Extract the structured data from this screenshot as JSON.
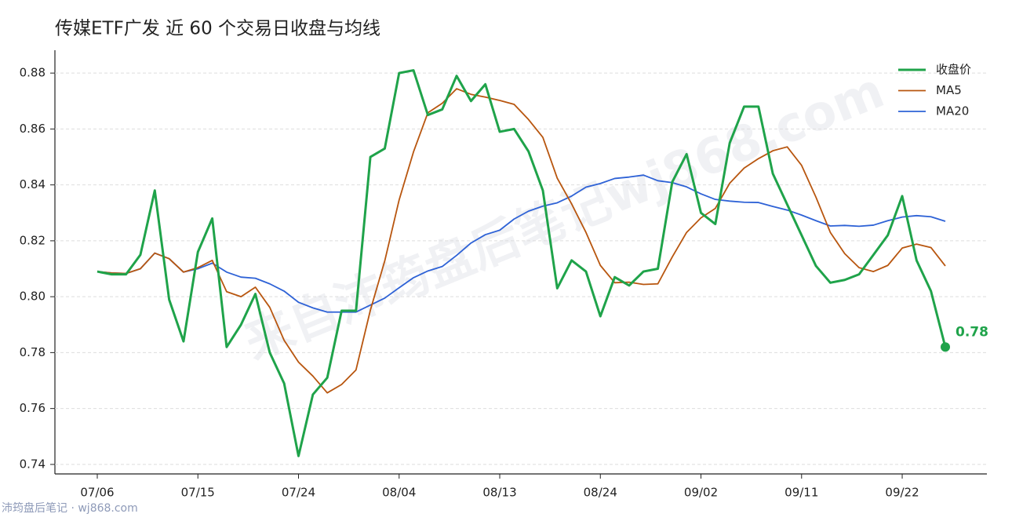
{
  "chart_data": {
    "type": "line",
    "title": "传媒ETF广发 近 60 个交易日收盘与均线",
    "watermark": "来自沛筠盘后笔记wj868.com",
    "source": "沛筠盘后笔记 · wj868.com",
    "categories": [
      "07/06",
      null,
      null,
      null,
      null,
      null,
      null,
      "07/15",
      null,
      null,
      null,
      null,
      null,
      null,
      "07/24",
      null,
      null,
      null,
      null,
      null,
      null,
      "08/04",
      null,
      null,
      null,
      null,
      null,
      null,
      "08/13",
      null,
      null,
      null,
      null,
      null,
      null,
      "08/24",
      null,
      null,
      null,
      null,
      null,
      null,
      "09/02",
      null,
      null,
      null,
      null,
      null,
      null,
      "09/11",
      null,
      null,
      null,
      null,
      null,
      null,
      "09/22",
      null,
      null,
      null
    ],
    "series": [
      {
        "name": "收盘价",
        "color": "#1fa34a",
        "width": 3,
        "values": [
          0.809,
          0.808,
          0.808,
          0.815,
          0.838,
          0.799,
          0.784,
          0.816,
          0.828,
          0.782,
          0.79,
          0.801,
          0.78,
          0.769,
          0.743,
          0.765,
          0.771,
          0.795,
          0.795,
          0.85,
          0.853,
          0.88,
          0.881,
          0.865,
          0.867,
          0.879,
          0.87,
          0.876,
          0.859,
          0.86,
          0.852,
          0.838,
          0.803,
          0.813,
          0.809,
          0.793,
          0.807,
          0.804,
          0.809,
          0.81,
          0.841,
          0.851,
          0.83,
          0.826,
          0.855,
          0.868,
          0.868,
          0.844,
          0.833,
          0.822,
          0.811,
          0.805,
          0.806,
          0.808,
          0.815,
          0.822,
          0.836,
          0.813,
          0.802,
          0.782
        ],
        "value_labels": [
          null,
          null,
          null,
          null,
          null,
          null,
          null,
          null,
          null,
          null,
          null,
          null,
          null,
          null,
          null,
          null,
          null,
          null,
          null,
          null,
          null,
          null,
          null,
          null,
          null,
          null,
          null,
          null,
          null,
          null,
          null,
          null,
          null,
          null,
          null,
          null,
          null,
          null,
          null,
          null,
          null,
          null,
          null,
          null,
          null,
          null,
          null,
          null,
          null,
          null,
          null,
          null,
          null,
          null,
          null,
          null,
          null,
          null,
          null,
          "0.78"
        ]
      },
      {
        "name": "MA5",
        "color": "#b8560f",
        "width": 1.8,
        "values": [
          0.809,
          0.8085,
          0.8083,
          0.81,
          0.8156,
          0.8136,
          0.8088,
          0.8104,
          0.813,
          0.8018,
          0.8,
          0.8034,
          0.7962,
          0.7844,
          0.7766,
          0.7716,
          0.7656,
          0.7686,
          0.7738,
          0.7952,
          0.8128,
          0.8346,
          0.8518,
          0.8658,
          0.8692,
          0.8744,
          0.8724,
          0.8714,
          0.8702,
          0.8688,
          0.8634,
          0.857,
          0.8424,
          0.8332,
          0.823,
          0.8112,
          0.805,
          0.8052,
          0.8044,
          0.8046,
          0.8142,
          0.823,
          0.8282,
          0.8316,
          0.8406,
          0.846,
          0.8494,
          0.8522,
          0.8536,
          0.847,
          0.8356,
          0.823,
          0.8154,
          0.8104,
          0.809,
          0.8112,
          0.8174,
          0.8188,
          0.8176,
          0.811
        ]
      },
      {
        "name": "MA20",
        "color": "#2e62d6",
        "width": 1.8,
        "values": [
          0.809,
          0.8085,
          0.8083,
          0.81,
          0.8156,
          0.8136,
          0.8088,
          0.81,
          0.812,
          0.8088,
          0.807,
          0.8066,
          0.8046,
          0.802,
          0.798,
          0.796,
          0.7945,
          0.7945,
          0.7945,
          0.797,
          0.7995,
          0.8032,
          0.8068,
          0.8092,
          0.8108,
          0.8148,
          0.8192,
          0.8222,
          0.8238,
          0.8278,
          0.8306,
          0.8324,
          0.8336,
          0.836,
          0.8392,
          0.8405,
          0.8423,
          0.8428,
          0.8435,
          0.8415,
          0.8408,
          0.8393,
          0.8368,
          0.8348,
          0.8342,
          0.8338,
          0.8337,
          0.8323,
          0.831,
          0.8292,
          0.8272,
          0.8253,
          0.8255,
          0.8252,
          0.8256,
          0.8272,
          0.8285,
          0.829,
          0.8286,
          0.827
        ]
      }
    ],
    "ylim": [
      0.7366,
      0.8879
    ],
    "yticks": [
      0.74,
      0.76,
      0.78,
      {
        "value": 0.8,
        "label": "0.80"
      },
      0.82,
      0.84,
      0.86,
      0.88
    ],
    "grid": true,
    "legend": "upper right"
  }
}
